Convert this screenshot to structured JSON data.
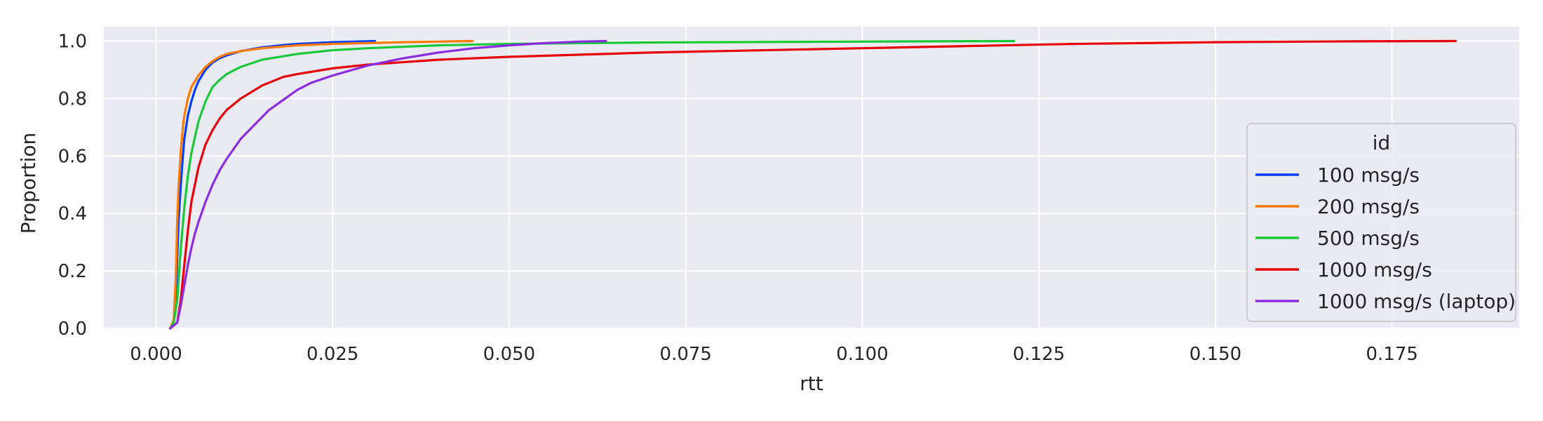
{
  "chart_data": {
    "type": "line",
    "title": "",
    "xlabel": "rtt",
    "ylabel": "Proportion",
    "xlim": [
      -0.0074,
      0.193
    ],
    "ylim": [
      0.0,
      1.05
    ],
    "xticks": [
      0.0,
      0.025,
      0.05,
      0.075,
      0.1,
      0.125,
      0.15,
      0.175
    ],
    "xtick_labels": [
      "0.000",
      "0.025",
      "0.050",
      "0.075",
      "0.100",
      "0.125",
      "0.150",
      "0.175"
    ],
    "yticks": [
      0.0,
      0.2,
      0.4,
      0.6,
      0.8,
      1.0
    ],
    "ytick_labels": [
      "0.0",
      "0.2",
      "0.4",
      "0.6",
      "0.8",
      "1.0"
    ],
    "grid": true,
    "background": "#eaeaf2",
    "legend": {
      "title": "id",
      "placement": "right"
    },
    "series": [
      {
        "name": "100 msg/s",
        "color": "#023eff",
        "x": [
          0.002,
          0.0025,
          0.0028,
          0.003,
          0.0032,
          0.0035,
          0.0038,
          0.004,
          0.0045,
          0.005,
          0.0055,
          0.006,
          0.007,
          0.008,
          0.009,
          0.01,
          0.012,
          0.015,
          0.018,
          0.02,
          0.025,
          0.031
        ],
        "y": [
          0.0,
          0.02,
          0.1,
          0.25,
          0.38,
          0.5,
          0.6,
          0.66,
          0.74,
          0.79,
          0.83,
          0.86,
          0.9,
          0.925,
          0.94,
          0.95,
          0.965,
          0.978,
          0.986,
          0.99,
          0.996,
          1.0
        ]
      },
      {
        "name": "200 msg/s",
        "color": "#ff7c00",
        "x": [
          0.002,
          0.0025,
          0.0028,
          0.003,
          0.0032,
          0.0035,
          0.0038,
          0.004,
          0.0045,
          0.005,
          0.006,
          0.007,
          0.008,
          0.009,
          0.01,
          0.012,
          0.015,
          0.02,
          0.025,
          0.03,
          0.035,
          0.04,
          0.0448
        ],
        "y": [
          0.0,
          0.03,
          0.18,
          0.38,
          0.5,
          0.62,
          0.7,
          0.74,
          0.8,
          0.84,
          0.88,
          0.91,
          0.93,
          0.945,
          0.955,
          0.965,
          0.975,
          0.985,
          0.99,
          0.993,
          0.996,
          0.998,
          1.0
        ]
      },
      {
        "name": "500 msg/s",
        "color": "#1ac938",
        "x": [
          0.002,
          0.0025,
          0.003,
          0.0035,
          0.004,
          0.0045,
          0.005,
          0.006,
          0.007,
          0.008,
          0.009,
          0.01,
          0.012,
          0.015,
          0.02,
          0.025,
          0.03,
          0.04,
          0.05,
          0.07,
          0.1,
          0.1215
        ],
        "y": [
          0.0,
          0.02,
          0.1,
          0.28,
          0.42,
          0.53,
          0.61,
          0.72,
          0.79,
          0.84,
          0.865,
          0.885,
          0.91,
          0.935,
          0.955,
          0.968,
          0.975,
          0.985,
          0.99,
          0.995,
          0.998,
          1.0
        ]
      },
      {
        "name": "1000 msg/s",
        "color": "#e8000b",
        "x": [
          0.002,
          0.003,
          0.0035,
          0.004,
          0.0045,
          0.005,
          0.006,
          0.007,
          0.008,
          0.009,
          0.01,
          0.012,
          0.015,
          0.018,
          0.02,
          0.025,
          0.03,
          0.04,
          0.05,
          0.07,
          0.1,
          0.13,
          0.15,
          0.17,
          0.184
        ],
        "y": [
          0.0,
          0.02,
          0.1,
          0.22,
          0.34,
          0.44,
          0.56,
          0.64,
          0.69,
          0.73,
          0.76,
          0.8,
          0.845,
          0.875,
          0.885,
          0.905,
          0.918,
          0.935,
          0.945,
          0.96,
          0.975,
          0.99,
          0.996,
          0.999,
          1.0
        ]
      },
      {
        "name": "1000 msg/s (laptop)",
        "color": "#8b2be2",
        "x": [
          0.002,
          0.003,
          0.0035,
          0.004,
          0.0045,
          0.005,
          0.0055,
          0.006,
          0.007,
          0.008,
          0.009,
          0.01,
          0.012,
          0.014,
          0.016,
          0.018,
          0.02,
          0.022,
          0.025,
          0.03,
          0.035,
          0.04,
          0.045,
          0.05,
          0.055,
          0.06,
          0.0637
        ],
        "y": [
          0.0,
          0.02,
          0.08,
          0.15,
          0.22,
          0.28,
          0.33,
          0.37,
          0.44,
          0.5,
          0.55,
          0.59,
          0.66,
          0.71,
          0.76,
          0.795,
          0.83,
          0.855,
          0.88,
          0.915,
          0.94,
          0.96,
          0.975,
          0.985,
          0.993,
          0.998,
          1.0
        ]
      }
    ]
  }
}
